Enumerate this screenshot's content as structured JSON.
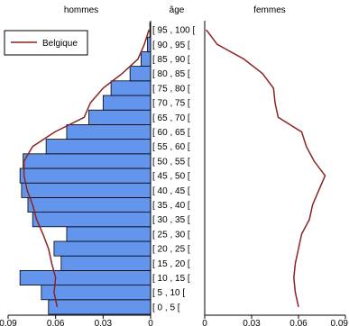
{
  "chart_data": {
    "type": "bar",
    "titles": {
      "left": "hommes",
      "middle": "âge",
      "right": "femmes"
    },
    "legend": {
      "label": "Belgique",
      "placement": "top-left",
      "line_color": "#8b2323"
    },
    "bar_color": "#6495ed",
    "line_color": "#8b2323",
    "categories": [
      "[ 0 , 5 [",
      "[ 5 , 10 [",
      "[ 10 , 15 [",
      "[ 15 , 20 [",
      "[ 20 , 25 [",
      "[ 25 , 30 [",
      "[ 30 , 35 [",
      "[ 35 , 40 [",
      "[ 40 , 45 [",
      "[ 45 , 50 [",
      "[ 50 , 55 [",
      "[ 55 , 60 [",
      "[ 60 , 65 [",
      "[ 65 , 70 [",
      "[ 70 , 75 [",
      "[ 75 , 80 [",
      "[ 80 , 85 [",
      "[ 85 , 90 [",
      "[ 90 , 95 [",
      "[ 95 , 100 ["
    ],
    "hommes_bars": [
      0.0645,
      0.069,
      0.0825,
      0.0565,
      0.061,
      0.053,
      0.0745,
      0.0775,
      0.0815,
      0.0825,
      0.0805,
      0.066,
      0.053,
      0.039,
      0.03,
      0.025,
      0.013,
      0.006,
      0.002,
      0.0005
    ],
    "hommes_line": [
      0.059,
      0.061,
      0.06,
      0.0625,
      0.0645,
      0.068,
      0.072,
      0.0745,
      0.078,
      0.08,
      0.08,
      0.0745,
      0.0605,
      0.042,
      0.038,
      0.03,
      0.018,
      0.008,
      0.004,
      0.001
    ],
    "femmes_line": [
      0.06,
      0.058,
      0.057,
      0.058,
      0.06,
      0.062,
      0.067,
      0.069,
      0.073,
      0.077,
      0.07,
      0.065,
      0.062,
      0.047,
      0.045,
      0.044,
      0.037,
      0.025,
      0.008,
      0.001
    ],
    "x_ticks_left": [
      "0.09",
      "0.06",
      "0.03",
      "0"
    ],
    "x_ticks_right": [
      "0",
      "0.03",
      "0.06",
      "0.09"
    ],
    "xlim": [
      0,
      0.09
    ]
  }
}
